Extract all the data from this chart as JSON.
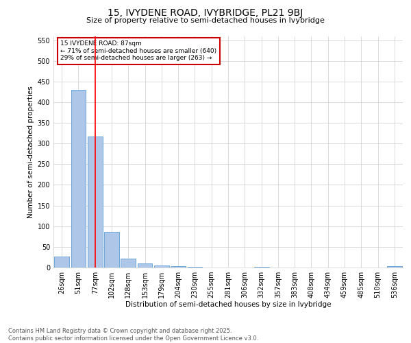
{
  "title_line1": "15, IVYDENE ROAD, IVYBRIDGE, PL21 9BJ",
  "title_line2": "Size of property relative to semi-detached houses in Ivybridge",
  "xlabel": "Distribution of semi-detached houses by size in Ivybridge",
  "ylabel": "Number of semi-detached properties",
  "categories": [
    "26sqm",
    "51sqm",
    "77sqm",
    "102sqm",
    "128sqm",
    "153sqm",
    "179sqm",
    "204sqm",
    "230sqm",
    "255sqm",
    "281sqm",
    "306sqm",
    "332sqm",
    "357sqm",
    "383sqm",
    "408sqm",
    "434sqm",
    "459sqm",
    "485sqm",
    "510sqm",
    "536sqm"
  ],
  "values": [
    27,
    430,
    317,
    87,
    21,
    10,
    5,
    3,
    1,
    0,
    0,
    0,
    1,
    0,
    0,
    0,
    0,
    0,
    0,
    0,
    3
  ],
  "bar_color": "#aec6e8",
  "bar_edge_color": "#5a9fd4",
  "red_line_x": 2,
  "annotation_text_line1": "15 IVYDENE ROAD: 87sqm",
  "annotation_text_line2": "← 71% of semi-detached houses are smaller (640)",
  "annotation_text_line3": "29% of semi-detached houses are larger (263) →",
  "annotation_box_color": "#ffffff",
  "annotation_box_edge_color": "#cc0000",
  "ylim": [
    0,
    560
  ],
  "yticks": [
    0,
    50,
    100,
    150,
    200,
    250,
    300,
    350,
    400,
    450,
    500,
    550
  ],
  "footnote_line1": "Contains HM Land Registry data © Crown copyright and database right 2025.",
  "footnote_line2": "Contains public sector information licensed under the Open Government Licence v3.0.",
  "bg_color": "#ffffff",
  "grid_color": "#cccccc",
  "font_color": "#000000",
  "title1_fontsize": 10,
  "title2_fontsize": 8,
  "xlabel_fontsize": 7.5,
  "ylabel_fontsize": 7.5,
  "tick_fontsize": 7,
  "annot_fontsize": 6.5,
  "footnote_fontsize": 6
}
